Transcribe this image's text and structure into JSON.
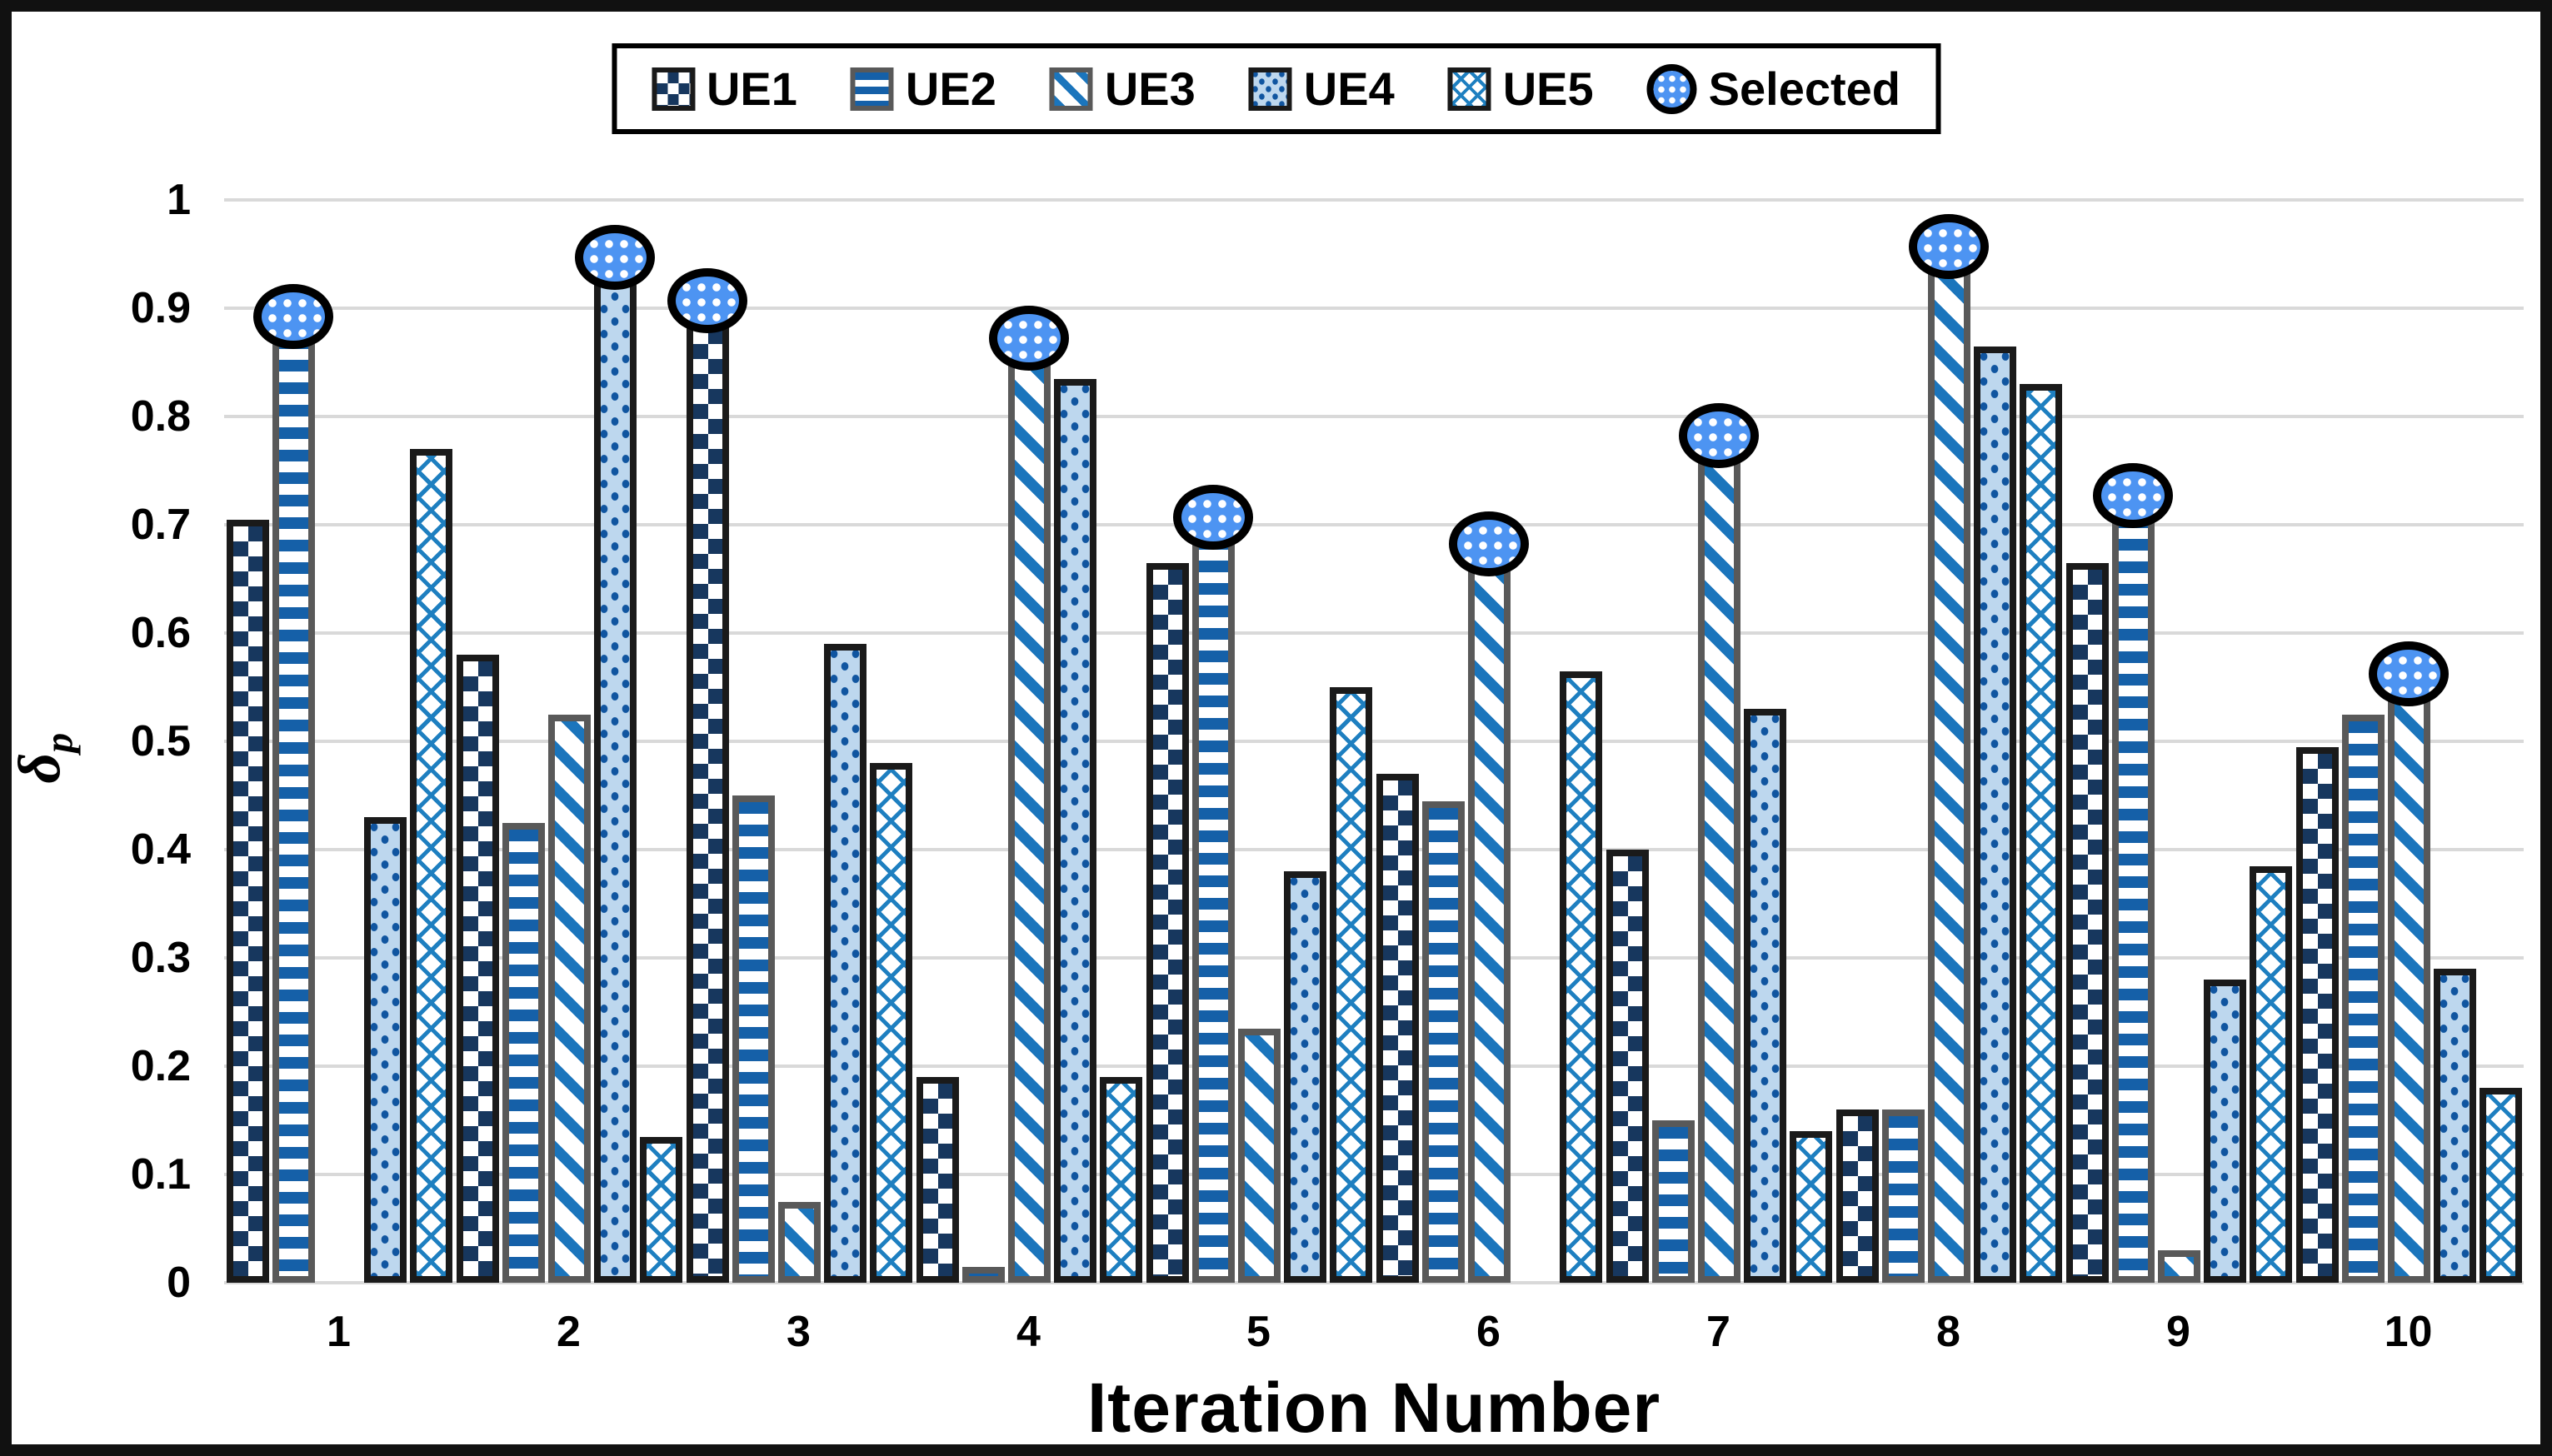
{
  "legend": {
    "selected_label": "Selected",
    "position": "top-center"
  },
  "colors": {
    "ue1_fill": "#17375E",
    "ue2_stripe": "#1560A8",
    "ue3_stripe": "#1B75BC",
    "ue4_bg": "#BDD7EE",
    "ue4_dot": "#1055A0",
    "ue5_line": "#1E7FC0",
    "selected_fill": "#4D94F2",
    "border_dark": "#1a1a1a",
    "border_gray": "#595959",
    "gridline": "#D9D9D9"
  },
  "chart_data": {
    "type": "bar",
    "title": "",
    "xlabel": "Iteration Number",
    "ylabel_symbol": "δ",
    "ylabel_sub": "p",
    "ylim": [
      0,
      1
    ],
    "grid": true,
    "legend_position": "top-center",
    "categories": [
      "1",
      "2",
      "3",
      "4",
      "5",
      "6",
      "7",
      "8",
      "9",
      "10"
    ],
    "yticks": [
      "0",
      "0.1",
      "0.2",
      "0.3",
      "0.4",
      "0.5",
      "0.6",
      "0.7",
      "0.8",
      "0.9",
      "1"
    ],
    "series": [
      {
        "name": "UE1",
        "values": [
          0.705,
          0.58,
          0.915,
          0.19,
          0.665,
          0.47,
          0.4,
          0.16,
          0.665,
          0.495
        ]
      },
      {
        "name": "UE2",
        "values": [
          0.9,
          0.425,
          0.45,
          0.015,
          0.715,
          0.445,
          0.15,
          0.16,
          0.735,
          0.525
        ]
      },
      {
        "name": "UE3",
        "values": [
          0,
          0.525,
          0.075,
          0.88,
          0.235,
          0.69,
          0.79,
          0.965,
          0.03,
          0.57
        ]
      },
      {
        "name": "UE4",
        "values": [
          0.43,
          0.955,
          0.59,
          0.835,
          0.38,
          0,
          0.53,
          0.865,
          0.28,
          0.29
        ]
      },
      {
        "name": "UE5",
        "values": [
          0.77,
          0.135,
          0.48,
          0.19,
          0.55,
          0.565,
          0.14,
          0.83,
          0.385,
          0.18
        ]
      }
    ],
    "selected_marker": {
      "label": "Selected",
      "series_per_group": [
        "UE2",
        "UE4",
        "UE1",
        "UE3",
        "UE2",
        "UE3",
        "UE3",
        "UE3",
        "UE2",
        "UE3"
      ],
      "values_per_group": [
        0.9,
        0.955,
        0.915,
        0.88,
        0.715,
        0.69,
        0.79,
        0.965,
        0.735,
        0.57
      ]
    }
  }
}
